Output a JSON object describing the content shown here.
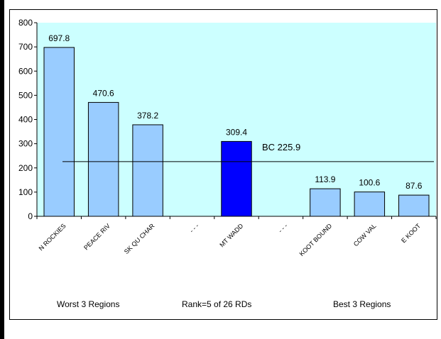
{
  "chart_data": {
    "type": "bar",
    "categories": [
      "N ROCKIES",
      "PEACE RIV",
      "SK QU CHAR",
      "- - -",
      "MT WADD",
      "- - -",
      "KOOT BOUND",
      "COW VAL",
      "E KOOT"
    ],
    "values": [
      697.8,
      470.6,
      378.2,
      null,
      309.4,
      null,
      113.9,
      100.6,
      87.6
    ],
    "value_labels": [
      "697.8",
      "470.6",
      "378.2",
      "",
      "309.4",
      "",
      "113.9",
      "100.6",
      "87.6"
    ],
    "highlight_index": 4,
    "ylim": [
      0,
      800
    ],
    "yticks": [
      "0",
      "100",
      "200",
      "300",
      "400",
      "500",
      "600",
      "700",
      "800"
    ],
    "reference_line": {
      "value": 225.9,
      "label": "BC 225.9"
    },
    "colors": {
      "bar": "#99ccff",
      "highlight": "#0000ff",
      "plot_bg": "#ccffff"
    }
  },
  "footer": {
    "left": "Worst 3 Regions",
    "center": "Rank=5 of 26 RDs",
    "right": "Best 3 Regions"
  }
}
